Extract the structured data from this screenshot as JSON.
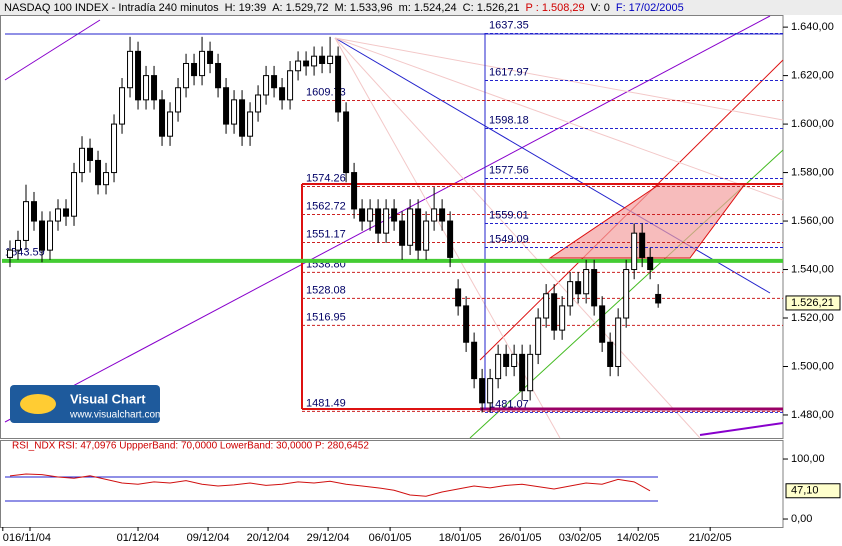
{
  "chart_data": [
    {
      "type": "candlestick",
      "title": "NASDAQ 100 INDEX - Intradía 240 minutos",
      "info": [
        "H: 19:39",
        "A: 1.529,72",
        "M: 1.533,96",
        "m: 1.524,24",
        "C: 1.526,21",
        "P : 1.508,29",
        "V: 0",
        "F: 17/02/2005"
      ],
      "info_colors": [
        "#000000",
        "#000000",
        "#000000",
        "#000000",
        "#000000",
        "#d00000",
        "#000000",
        "#0000c0"
      ],
      "xlim": [
        -1.25,
        96.6
      ],
      "xticks": [
        {
          "value": -0.9,
          "label": "0"
        },
        {
          "value": 2.5,
          "label": "16/11/04"
        },
        {
          "value": 16,
          "label": "01/12/04"
        },
        {
          "value": 24.75,
          "label": "09/12/04"
        },
        {
          "value": 32.25,
          "label": "20/12/04"
        },
        {
          "value": 39.75,
          "label": "29/12/04"
        },
        {
          "value": 47.5,
          "label": "06/01/05"
        },
        {
          "value": 56.25,
          "label": "18/01/05"
        },
        {
          "value": 63.75,
          "label": "26/01/05"
        },
        {
          "value": 71.25,
          "label": "03/02/05"
        },
        {
          "value": 78.5,
          "label": "14/02/05"
        },
        {
          "value": 87.5,
          "label": "21/02/05"
        }
      ],
      "ylim": [
        1470.5,
        1645
      ],
      "yticks": [
        {
          "value": 1480,
          "label": "1.480,00"
        },
        {
          "value": 1500,
          "label": "1.500,00"
        },
        {
          "value": 1520,
          "label": "1.520,00"
        },
        {
          "value": 1540,
          "label": "1.540,00"
        },
        {
          "value": 1560,
          "label": "1.560,00"
        },
        {
          "value": 1580,
          "label": "1.580,00"
        },
        {
          "value": 1600,
          "label": "1.600,00"
        },
        {
          "value": 1620,
          "label": "1.620,00"
        },
        {
          "value": 1640,
          "label": "1.640,00"
        }
      ],
      "current": {
        "value": 1526.21,
        "label": "1.526,21"
      },
      "support": {
        "value": 1543.59,
        "label": "1543.59",
        "color": "#44cc33"
      },
      "levels_left": [
        1609.73,
        1574.26,
        1562.72,
        1551.17,
        {
          "value": 1538.8,
          "label": "1538.80"
        },
        1528.08,
        1516.95,
        1481.49
      ],
      "levels_right": [
        1637.35,
        1617.97,
        1598.18,
        1577.56,
        1559.01,
        1549.09,
        1481.07
      ],
      "series": [
        {
          "name": "NASDAQ 100 INDEX",
          "open": [
            1545,
            1548,
            1552,
            1568,
            1560,
            1548,
            1560,
            1565,
            1562,
            1580,
            1590,
            1585,
            1575,
            1580,
            1600,
            1615,
            1630,
            1610,
            1620,
            1610,
            1595,
            1605,
            1615,
            1625,
            1620,
            1630,
            1625,
            1615,
            1600,
            1610,
            1595,
            1605,
            1612,
            1620,
            1615,
            1610,
            1622,
            1626,
            1624,
            1628,
            1625,
            1628,
            1605,
            1580,
            1565,
            1560,
            1565,
            1555,
            1565,
            1560,
            1550,
            1565,
            1548,
            1560,
            1565,
            1560,
            1532,
            1525,
            1510,
            1495,
            1485,
            1495,
            1505,
            1500,
            1505,
            1490,
            1505,
            1520,
            1530,
            1515,
            1525,
            1535,
            1530,
            1540,
            1525,
            1510,
            1500,
            1520,
            1540,
            1555,
            1545,
            1529.72
          ],
          "high": [
            1552,
            1556,
            1575,
            1572,
            1564,
            1564,
            1569,
            1569,
            1584,
            1595,
            1594,
            1589,
            1584,
            1604,
            1619,
            1636,
            1634,
            1624,
            1624,
            1614,
            1609,
            1619,
            1629,
            1629,
            1636,
            1634,
            1629,
            1619,
            1614,
            1614,
            1609,
            1616,
            1624,
            1624,
            1619,
            1626,
            1630,
            1630,
            1632,
            1632,
            1636,
            1632,
            1609,
            1584,
            1569,
            1569,
            1569,
            1569,
            1569,
            1564,
            1569,
            1569,
            1564,
            1574,
            1569,
            1564,
            1536,
            1529,
            1514,
            1499,
            1499,
            1509,
            1509,
            1509,
            1509,
            1509,
            1524,
            1534,
            1534,
            1529,
            1539,
            1539,
            1544,
            1544,
            1529,
            1514,
            1524,
            1544,
            1559,
            1559,
            1549,
            1533.96
          ],
          "low": [
            1541,
            1544,
            1548,
            1556,
            1543,
            1544,
            1556,
            1558,
            1558,
            1576,
            1580,
            1571,
            1571,
            1576,
            1596,
            1611,
            1606,
            1606,
            1606,
            1591,
            1591,
            1601,
            1611,
            1616,
            1616,
            1621,
            1611,
            1596,
            1596,
            1591,
            1591,
            1601,
            1608,
            1611,
            1606,
            1606,
            1618,
            1620,
            1620,
            1621,
            1621,
            1601,
            1576,
            1561,
            1556,
            1556,
            1551,
            1551,
            1556,
            1544,
            1546,
            1544,
            1544,
            1556,
            1556,
            1541,
            1521,
            1506,
            1491,
            1481,
            1481,
            1491,
            1496,
            1496,
            1486,
            1486,
            1501,
            1516,
            1511,
            1511,
            1521,
            1526,
            1526,
            1521,
            1506,
            1496,
            1496,
            1516,
            1536,
            1541,
            1536,
            1524.24
          ],
          "close": [
            1548,
            1552,
            1568,
            1560,
            1548,
            1560,
            1565,
            1562,
            1580,
            1590,
            1585,
            1575,
            1580,
            1600,
            1615,
            1630,
            1610,
            1620,
            1610,
            1595,
            1605,
            1615,
            1625,
            1620,
            1630,
            1625,
            1615,
            1600,
            1610,
            1595,
            1605,
            1612,
            1620,
            1615,
            1610,
            1622,
            1626,
            1624,
            1628,
            1625,
            1628,
            1605,
            1580,
            1565,
            1560,
            1565,
            1555,
            1565,
            1560,
            1550,
            1565,
            1548,
            1560,
            1565,
            1560,
            1545,
            1525,
            1510,
            1495,
            1485,
            1495,
            1505,
            1500,
            1505,
            1490,
            1505,
            1520,
            1530,
            1515,
            1525,
            1535,
            1530,
            1540,
            1525,
            1510,
            1500,
            1520,
            1540,
            1555,
            1545,
            1540,
            1526.21
          ]
        }
      ]
    },
    {
      "type": "line",
      "title": "RSI_NDX RSI: 47,0976 UppperBand: 70,0000 LowerBand: 30,0000 P: 280,6452",
      "xlim": [
        -0.625,
        48.31
      ],
      "ylim": [
        -13.3,
        131.7
      ],
      "yticks": [
        {
          "value": 0,
          "label": "0,00"
        },
        {
          "value": 100,
          "label": "100,00"
        }
      ],
      "bands": [
        70,
        30
      ],
      "current": {
        "value": 47.0976,
        "label": "47,10"
      },
      "series": [
        {
          "name": "RSI",
          "color": "#d01010",
          "values": [
            72,
            75,
            74,
            70,
            68,
            72,
            66,
            60,
            58,
            62,
            60,
            64,
            58,
            55,
            57,
            60,
            56,
            58,
            62,
            60,
            63,
            58,
            55,
            52,
            48,
            40,
            38,
            45,
            50,
            55,
            52,
            56,
            58,
            54,
            50,
            55,
            60,
            58,
            66,
            62,
            47.0976
          ]
        }
      ]
    }
  ],
  "logo": {
    "title": "Visual Chart",
    "url": "www.visualchart.com"
  }
}
